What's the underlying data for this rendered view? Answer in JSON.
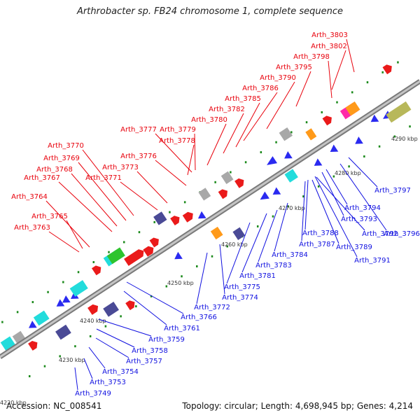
{
  "title": "Arthrobacter sp. FB24 chromosome 1, complete sequence",
  "footer": {
    "accession": "Accession: NC_008541",
    "summary": "Topology: circular; Length: 4,698,945 bp; Genes: 4,214"
  },
  "colors": {
    "forward_label": "#e8000b",
    "reverse_label": "#1010e0",
    "backbone": "#8c8c8c",
    "tick_dot": "#1c8a1c"
  },
  "ticks": [
    "4220 kbp",
    "4230 kbp",
    "4240 kbp",
    "4250 kbp",
    "4260 kbp",
    "4270 kbp",
    "4280 kbp",
    "4290 kbp"
  ],
  "top_labels": [
    "Arth_3803",
    "Arth_3802",
    "Arth_3798",
    "Arth_3795",
    "Arth_3790",
    "Arth_3786",
    "Arth_3785",
    "Arth_3782",
    "Arth_3780",
    "Arth_3777",
    "Arth_3779",
    "Arth_3778",
    "Arth_3770",
    "Arth_3776",
    "Arth_3769",
    "Arth_3773",
    "Arth_3768",
    "Arth_3767",
    "Arth_3771",
    "Arth_3764",
    "Arth_3765",
    "Arth_3763"
  ],
  "bottom_labels": [
    "Arth_3797",
    "Arth_3794",
    "Arth_3793",
    "Arth_3796",
    "Arth_3792",
    "Arth_3788",
    "Arth_3787",
    "Arth_3789",
    "Arth_3791",
    "Arth_3784",
    "Arth_3783",
    "Arth_3781",
    "Arth_3775",
    "Arth_3774",
    "Arth_3772",
    "Arth_3766",
    "Arth_3761",
    "Arth_3759",
    "Arth_3758",
    "Arth_3757",
    "Arth_3754",
    "Arth_3753",
    "Arth_3749"
  ]
}
